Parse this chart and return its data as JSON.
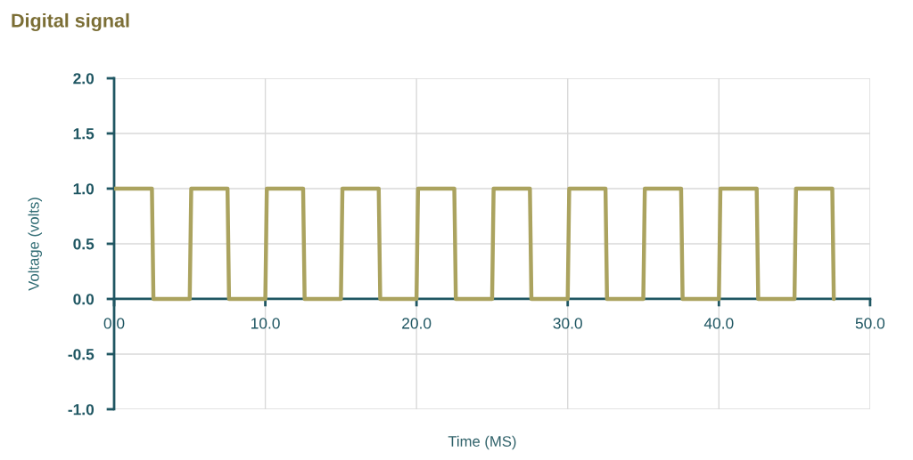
{
  "chart_data": {
    "type": "line",
    "title": "Digital signal",
    "xlabel": "Time (MS)",
    "ylabel": "Voltage (volts)",
    "x": [
      0,
      2.5,
      2.6,
      5.0,
      5.1,
      7.5,
      7.6,
      10.0,
      10.1,
      12.5,
      12.6,
      15.0,
      15.1,
      17.5,
      17.6,
      20.0,
      20.1,
      22.5,
      22.6,
      25.0,
      25.1,
      27.5,
      27.6,
      30.0,
      30.1,
      32.5,
      32.6,
      35.0,
      35.1,
      37.5,
      37.6,
      40.0,
      40.1,
      42.5,
      42.6,
      45.0,
      45.1,
      47.5,
      47.6
    ],
    "values": [
      1,
      1,
      0,
      0,
      1,
      1,
      0,
      0,
      1,
      1,
      0,
      0,
      1,
      1,
      0,
      0,
      1,
      1,
      0,
      0,
      1,
      1,
      0,
      0,
      1,
      1,
      0,
      0,
      1,
      1,
      0,
      0,
      1,
      1,
      0,
      0,
      1,
      1,
      0
    ],
    "color": "#aba35f",
    "line_style": "solid",
    "xlim": [
      0,
      50
    ],
    "xticks": [
      {
        "value": 0,
        "label": "0.0"
      },
      {
        "value": 10,
        "label": "10.0"
      },
      {
        "value": 20,
        "label": "20.0"
      },
      {
        "value": 30,
        "label": "30.0"
      },
      {
        "value": 40,
        "label": "40.0"
      },
      {
        "value": 50,
        "label": "50.0"
      }
    ],
    "ylim": [
      -1,
      2
    ],
    "yticks": [
      {
        "value": -1,
        "label": "-1.0"
      },
      {
        "value": -0.5,
        "label": "-0.5"
      },
      {
        "value": 0,
        "label": "0.0"
      },
      {
        "value": 0.5,
        "label": "0.5"
      },
      {
        "value": 1,
        "label": "1.0"
      },
      {
        "value": 1.5,
        "label": "1.5"
      },
      {
        "value": 2,
        "label": "2.0"
      }
    ],
    "grid": true
  }
}
